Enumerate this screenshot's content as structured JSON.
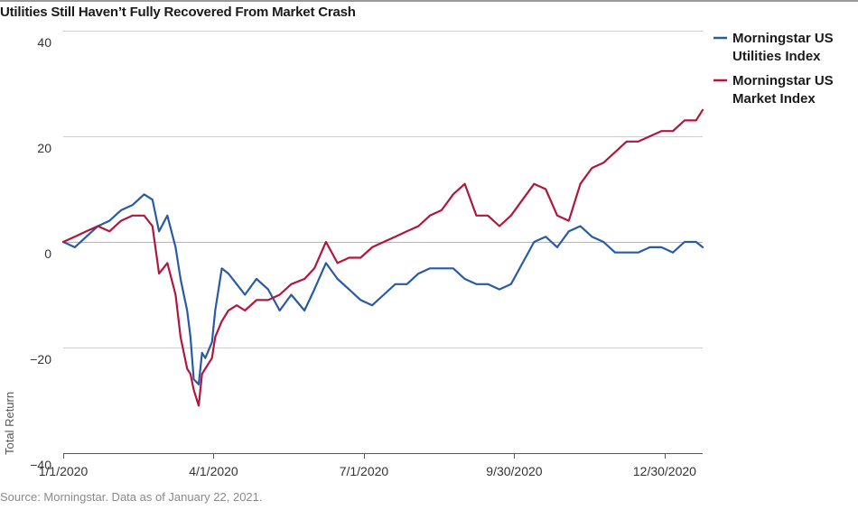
{
  "chart_data": {
    "type": "line",
    "title": "Utilities Still Haven’t Fully Recovered From Market Crash",
    "ylabel": "Total Return",
    "ylim": [
      -40,
      40
    ],
    "yticks": [
      40,
      20,
      0,
      -20,
      -40
    ],
    "ytick_labels": [
      "40",
      "20",
      "0",
      "−20",
      "−40"
    ],
    "xlim": [
      "2020-01-01",
      "2021-01-22"
    ],
    "xticks": [
      "2020-01-01",
      "2020-04-01",
      "2020-07-01",
      "2020-09-30",
      "2020-12-30"
    ],
    "xtick_labels": [
      "1/1/2020",
      "4/1/2020",
      "7/1/2020",
      "9/30/2020",
      "12/30/2020"
    ],
    "grid": "horizontal",
    "legend_position": "right",
    "colors": {
      "utilities": "#2a5aa5",
      "market": "#b0173d"
    },
    "series": [
      {
        "name": "Morningstar US Utilities Index",
        "legend_lines": [
          "Morningstar US",
          "Utilities Index"
        ],
        "color": "#2a5aa5",
        "points": [
          [
            "2020-01-01",
            0
          ],
          [
            "2020-01-08",
            -1
          ],
          [
            "2020-01-15",
            1
          ],
          [
            "2020-01-22",
            3
          ],
          [
            "2020-01-29",
            4
          ],
          [
            "2020-02-05",
            6
          ],
          [
            "2020-02-12",
            7
          ],
          [
            "2020-02-19",
            9
          ],
          [
            "2020-02-24",
            8
          ],
          [
            "2020-02-28",
            2
          ],
          [
            "2020-03-04",
            5
          ],
          [
            "2020-03-09",
            -1
          ],
          [
            "2020-03-12",
            -7
          ],
          [
            "2020-03-16",
            -13
          ],
          [
            "2020-03-18",
            -18
          ],
          [
            "2020-03-20",
            -26
          ],
          [
            "2020-03-23",
            -27
          ],
          [
            "2020-03-25",
            -21
          ],
          [
            "2020-03-27",
            -22
          ],
          [
            "2020-03-31",
            -19
          ],
          [
            "2020-04-02",
            -13
          ],
          [
            "2020-04-06",
            -5
          ],
          [
            "2020-04-10",
            -6
          ],
          [
            "2020-04-15",
            -8
          ],
          [
            "2020-04-20",
            -10
          ],
          [
            "2020-04-27",
            -7
          ],
          [
            "2020-05-04",
            -9
          ],
          [
            "2020-05-11",
            -13
          ],
          [
            "2020-05-18",
            -10
          ],
          [
            "2020-05-26",
            -13
          ],
          [
            "2020-06-01",
            -9
          ],
          [
            "2020-06-08",
            -4
          ],
          [
            "2020-06-15",
            -7
          ],
          [
            "2020-06-22",
            -9
          ],
          [
            "2020-06-29",
            -11
          ],
          [
            "2020-07-06",
            -12
          ],
          [
            "2020-07-13",
            -10
          ],
          [
            "2020-07-20",
            -8
          ],
          [
            "2020-07-27",
            -8
          ],
          [
            "2020-08-03",
            -6
          ],
          [
            "2020-08-10",
            -5
          ],
          [
            "2020-08-17",
            -5
          ],
          [
            "2020-08-24",
            -5
          ],
          [
            "2020-08-31",
            -7
          ],
          [
            "2020-09-07",
            -8
          ],
          [
            "2020-09-14",
            -8
          ],
          [
            "2020-09-21",
            -9
          ],
          [
            "2020-09-28",
            -8
          ],
          [
            "2020-10-05",
            -4
          ],
          [
            "2020-10-12",
            0
          ],
          [
            "2020-10-19",
            1
          ],
          [
            "2020-10-26",
            -1
          ],
          [
            "2020-11-02",
            2
          ],
          [
            "2020-11-09",
            3
          ],
          [
            "2020-11-16",
            1
          ],
          [
            "2020-11-23",
            0
          ],
          [
            "2020-11-30",
            -2
          ],
          [
            "2020-12-07",
            -2
          ],
          [
            "2020-12-14",
            -2
          ],
          [
            "2020-12-21",
            -1
          ],
          [
            "2020-12-28",
            -1
          ],
          [
            "2021-01-04",
            -2
          ],
          [
            "2021-01-11",
            0
          ],
          [
            "2021-01-18",
            0
          ],
          [
            "2021-01-22",
            -1
          ]
        ]
      },
      {
        "name": "Morningstar US Market Index",
        "legend_lines": [
          "Morningstar US",
          "Market Index"
        ],
        "color": "#b0173d",
        "points": [
          [
            "2020-01-01",
            0
          ],
          [
            "2020-01-08",
            1
          ],
          [
            "2020-01-15",
            2
          ],
          [
            "2020-01-22",
            3
          ],
          [
            "2020-01-29",
            2
          ],
          [
            "2020-02-05",
            4
          ],
          [
            "2020-02-12",
            5
          ],
          [
            "2020-02-19",
            5
          ],
          [
            "2020-02-24",
            3
          ],
          [
            "2020-02-28",
            -6
          ],
          [
            "2020-03-04",
            -4
          ],
          [
            "2020-03-09",
            -10
          ],
          [
            "2020-03-12",
            -18
          ],
          [
            "2020-03-16",
            -24
          ],
          [
            "2020-03-18",
            -25
          ],
          [
            "2020-03-20",
            -28
          ],
          [
            "2020-03-23",
            -31
          ],
          [
            "2020-03-25",
            -25
          ],
          [
            "2020-03-27",
            -24
          ],
          [
            "2020-03-31",
            -22
          ],
          [
            "2020-04-02",
            -18
          ],
          [
            "2020-04-06",
            -15
          ],
          [
            "2020-04-10",
            -13
          ],
          [
            "2020-04-15",
            -12
          ],
          [
            "2020-04-20",
            -13
          ],
          [
            "2020-04-27",
            -11
          ],
          [
            "2020-05-04",
            -11
          ],
          [
            "2020-05-11",
            -10
          ],
          [
            "2020-05-18",
            -8
          ],
          [
            "2020-05-26",
            -7
          ],
          [
            "2020-06-01",
            -5
          ],
          [
            "2020-06-08",
            0
          ],
          [
            "2020-06-15",
            -4
          ],
          [
            "2020-06-22",
            -3
          ],
          [
            "2020-06-29",
            -3
          ],
          [
            "2020-07-06",
            -1
          ],
          [
            "2020-07-13",
            0
          ],
          [
            "2020-07-20",
            1
          ],
          [
            "2020-07-27",
            2
          ],
          [
            "2020-08-03",
            3
          ],
          [
            "2020-08-10",
            5
          ],
          [
            "2020-08-17",
            6
          ],
          [
            "2020-08-24",
            9
          ],
          [
            "2020-08-31",
            11
          ],
          [
            "2020-09-07",
            5
          ],
          [
            "2020-09-14",
            5
          ],
          [
            "2020-09-21",
            3
          ],
          [
            "2020-09-28",
            5
          ],
          [
            "2020-10-05",
            8
          ],
          [
            "2020-10-12",
            11
          ],
          [
            "2020-10-19",
            10
          ],
          [
            "2020-10-26",
            5
          ],
          [
            "2020-11-02",
            4
          ],
          [
            "2020-11-09",
            11
          ],
          [
            "2020-11-16",
            14
          ],
          [
            "2020-11-23",
            15
          ],
          [
            "2020-11-30",
            17
          ],
          [
            "2020-12-07",
            19
          ],
          [
            "2020-12-14",
            19
          ],
          [
            "2020-12-21",
            20
          ],
          [
            "2020-12-28",
            21
          ],
          [
            "2021-01-04",
            21
          ],
          [
            "2021-01-11",
            23
          ],
          [
            "2021-01-18",
            23
          ],
          [
            "2021-01-22",
            25
          ]
        ]
      }
    ]
  },
  "source": "Source: Morningstar.  Data as of January 22, 2021."
}
